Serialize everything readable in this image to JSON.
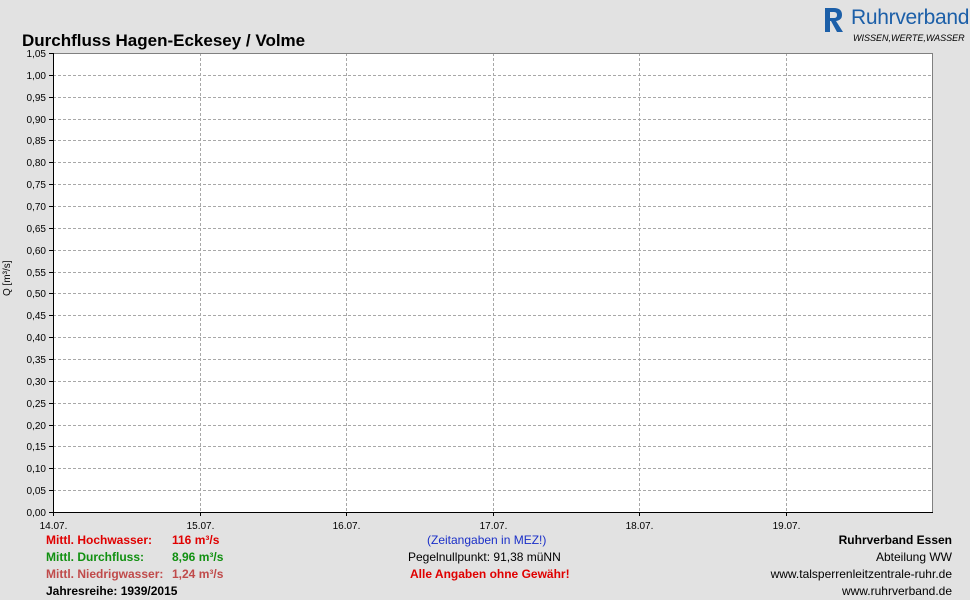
{
  "logo": {
    "name": "Ruhrverband",
    "tagline": "WISSEN,WERTE,WASSER"
  },
  "colors": {
    "plot_bg": "#ffffff",
    "grid": "#a8a8a8",
    "page_bg": "#e2e2e2",
    "brand": "#1c5fa8"
  },
  "chart_data": {
    "type": "line",
    "title": "Durchfluss Hagen-Eckesey / Volme",
    "ylabel": "Q [m³/s]",
    "xlabel": "",
    "x_ticks": [
      "14.07.",
      "15.07.",
      "16.07.",
      "17.07.",
      "18.07.",
      "19.07."
    ],
    "y_ticks": [
      "0,00",
      "0,05",
      "0,10",
      "0,15",
      "0,20",
      "0,25",
      "0,30",
      "0,35",
      "0,40",
      "0,45",
      "0,50",
      "0,55",
      "0,60",
      "0,65",
      "0,70",
      "0,75",
      "0,80",
      "0,85",
      "0,90",
      "0,95",
      "1,00",
      "1,05"
    ],
    "ylim": [
      0,
      1.05
    ],
    "series": [],
    "grid": true
  },
  "stats": {
    "hochwasser": {
      "label": "Mittl. Hochwasser:",
      "value": "116 m³/s"
    },
    "durchfluss": {
      "label": "Mittl. Durchfluss:",
      "value": "8,96 m³/s"
    },
    "niedrigwasser": {
      "label": "Mittl. Niedrigwasser:",
      "value": "1,24 m³/s"
    },
    "jahresreihe": "Jahresreihe: 1939/2015"
  },
  "notes": {
    "zeit": "(Zeitangaben in MEZ!)",
    "pegel": "Pegelnullpunkt: 91,38 müNN",
    "gewaehr": "Alle Angaben ohne Gewähr!"
  },
  "org": {
    "name": "Ruhrverband Essen",
    "abteilung": "Abteilung WW",
    "url1": "www.talsperrenleitzentrale-ruhr.de",
    "url2": "www.ruhrverband.de"
  }
}
